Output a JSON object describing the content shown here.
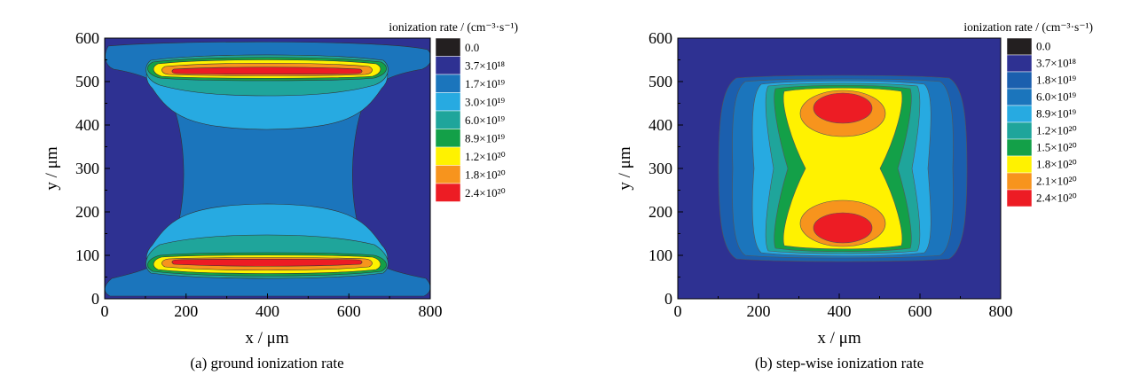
{
  "chart_data": [
    {
      "type": "heatmap",
      "subtype": "filled-contour",
      "caption": "(a) ground ionization rate",
      "xlabel": "x / μm",
      "ylabel": "y / μm",
      "xlim": [
        0,
        800
      ],
      "ylim": [
        0,
        600
      ],
      "xticks": [
        "0",
        "200",
        "400",
        "600",
        "800"
      ],
      "yticks": [
        "0",
        "100",
        "200",
        "300",
        "400",
        "500",
        "600"
      ],
      "colorbar_title": "ionization rate / (cm⁻³·s⁻¹)",
      "colorbar_levels": [
        {
          "label": "0.0",
          "color": "#231f20"
        },
        {
          "label": "3.7×10¹⁸",
          "color": "#2e3192"
        },
        {
          "label": "1.7×10¹⁹",
          "color": "#1b75bc"
        },
        {
          "label": "3.0×10¹⁹",
          "color": "#27aae1"
        },
        {
          "label": "6.0×10¹⁹",
          "color": "#1fa59b"
        },
        {
          "label": "8.9×10¹⁹",
          "color": "#13a048"
        },
        {
          "label": "1.2×10²⁰",
          "color": "#fff200"
        },
        {
          "label": "1.8×10²⁰",
          "color": "#f7941d"
        },
        {
          "label": "2.4×10²⁰",
          "color": "#ed1c24"
        }
      ],
      "annotations": "Peak ionization bands near y≈85 μm and y≈515 μm spanning x≈180–620 μm; minimum in central waist region."
    },
    {
      "type": "heatmap",
      "subtype": "filled-contour",
      "caption": "(b) step-wise ionization rate",
      "xlabel": "x / μm",
      "ylabel": "y / μm",
      "xlim": [
        0,
        800
      ],
      "ylim": [
        0,
        600
      ],
      "xticks": [
        "0",
        "200",
        "400",
        "600",
        "800"
      ],
      "yticks": [
        "0",
        "100",
        "200",
        "300",
        "400",
        "500",
        "600"
      ],
      "colorbar_title": "ionization rate / (cm⁻³·s⁻¹)",
      "colorbar_levels": [
        {
          "label": "0.0",
          "color": "#231f20"
        },
        {
          "label": "3.7×10¹⁸",
          "color": "#2e3192"
        },
        {
          "label": "1.8×10¹⁹",
          "color": "#1b5fae"
        },
        {
          "label": "6.0×10¹⁹",
          "color": "#1b75bc"
        },
        {
          "label": "8.9×10¹⁹",
          "color": "#27aae1"
        },
        {
          "label": "1.2×10²⁰",
          "color": "#1fa59b"
        },
        {
          "label": "1.5×10²⁰",
          "color": "#13a048"
        },
        {
          "label": "1.8×10²⁰",
          "color": "#fff200"
        },
        {
          "label": "2.1×10²⁰",
          "color": "#f7941d"
        },
        {
          "label": "2.4×10²⁰",
          "color": "#ed1c24"
        }
      ],
      "annotations": "Two peak lobes centered at x≈400 μm, y≈170 μm and y≈430 μm; hourglass-shaped high-rate region."
    }
  ]
}
